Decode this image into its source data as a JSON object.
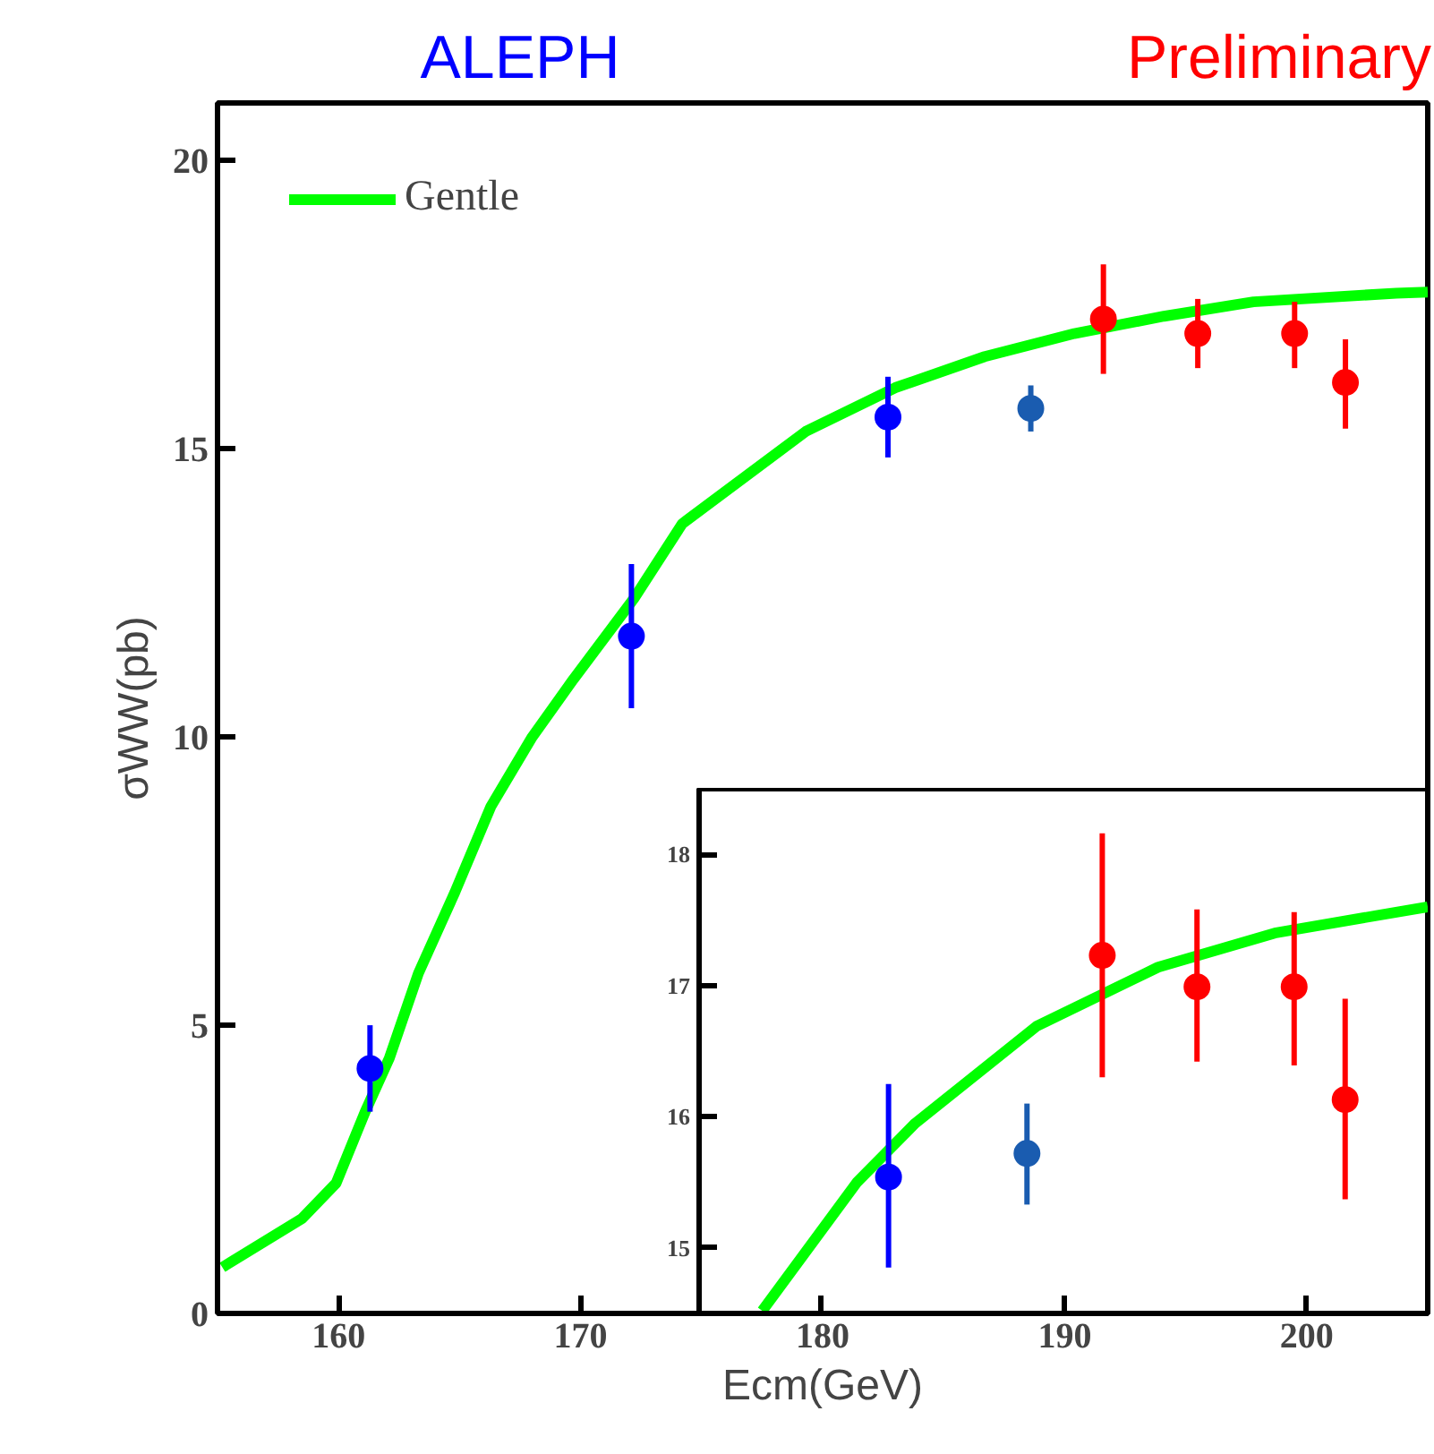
{
  "chart_data": [
    {
      "type": "scatter",
      "title": "ALEPH",
      "annotations": [
        "Preliminary"
      ],
      "xlabel": "Ecm(GeV)",
      "ylabel": "σWW(pb)",
      "xlim": [
        155,
        205
      ],
      "xticks": [
        160,
        170,
        180,
        190,
        200
      ],
      "ylim": [
        0,
        21
      ],
      "yticks": [
        0,
        5,
        10,
        15,
        20
      ],
      "legend": "top left",
      "series": [
        {
          "name": "Gentle",
          "type": "line",
          "color": "#00ff00",
          "line_style": "solid",
          "x": [
            155.2,
            158.5,
            159.9,
            161.1,
            162.1,
            163.3,
            164.8,
            166.3,
            168.0,
            169.7,
            172.2,
            174.2,
            179.3,
            183.0,
            186.7,
            190.4,
            194.1,
            197.8,
            203.7,
            205
          ],
          "values": [
            0.8,
            1.65,
            2.26,
            3.5,
            4.43,
            5.9,
            7.3,
            8.8,
            10.0,
            11.0,
            12.4,
            13.7,
            15.3,
            16.06,
            16.6,
            17.0,
            17.3,
            17.55,
            17.7,
            17.72
          ]
        },
        {
          "type": "scatter",
          "marker": "circle",
          "color": "#0000ff",
          "x": [
            161.3,
            172.1,
            182.7
          ],
          "values": [
            4.25,
            11.75,
            15.55
          ],
          "errors": [
            [
              3.5,
              5.0
            ],
            [
              10.5,
              13.0
            ],
            [
              14.85,
              16.25
            ]
          ]
        },
        {
          "type": "scatter",
          "marker": "circle",
          "color": "#1a5cb0",
          "x": [
            188.6
          ],
          "values": [
            15.7
          ],
          "errors": [
            [
              15.3,
              16.1
            ]
          ]
        },
        {
          "type": "scatter",
          "marker": "circle",
          "color": "#ff0000",
          "x": [
            191.6,
            195.5,
            199.5,
            201.6
          ],
          "values": [
            17.25,
            17.0,
            17.0,
            16.15
          ],
          "errors": [
            [
              16.3,
              18.2
            ],
            [
              16.4,
              17.6
            ],
            [
              16.4,
              17.55
            ],
            [
              15.35,
              16.9
            ]
          ]
        }
      ]
    },
    {
      "type": "scatter",
      "xlim": [
        175,
        205
      ],
      "xticks": [
        180,
        190,
        200
      ],
      "ylim": [
        14.5,
        18.5
      ],
      "yticks": [
        15,
        16,
        17,
        18
      ],
      "tick_labels": "y",
      "series": [
        {
          "type": "line",
          "color": "#00ff00",
          "line_style": "solid",
          "x": [
            177.6,
            181.5,
            183.9,
            188.9,
            193.9,
            198.7,
            205
          ],
          "values": [
            14.52,
            15.5,
            15.95,
            16.69,
            17.14,
            17.4,
            17.6
          ]
        },
        {
          "type": "scatter",
          "marker": "circle",
          "color": "#0000ff",
          "x": [
            182.8
          ],
          "values": [
            15.54
          ],
          "errors": [
            [
              14.85,
              16.25
            ]
          ]
        },
        {
          "type": "scatter",
          "marker": "circle",
          "color": "#1a5cb0",
          "x": [
            188.5
          ],
          "values": [
            15.72
          ],
          "errors": [
            [
              15.33,
              16.1
            ]
          ]
        },
        {
          "type": "scatter",
          "marker": "circle",
          "color": "#ff0000",
          "x": [
            191.6,
            195.5,
            199.5,
            201.6
          ],
          "values": [
            17.23,
            16.99,
            16.99,
            16.13
          ],
          "errors": [
            [
              16.3,
              18.16
            ],
            [
              16.42,
              17.58
            ],
            [
              16.39,
              17.56
            ],
            [
              15.37,
              16.9
            ]
          ]
        }
      ]
    }
  ]
}
